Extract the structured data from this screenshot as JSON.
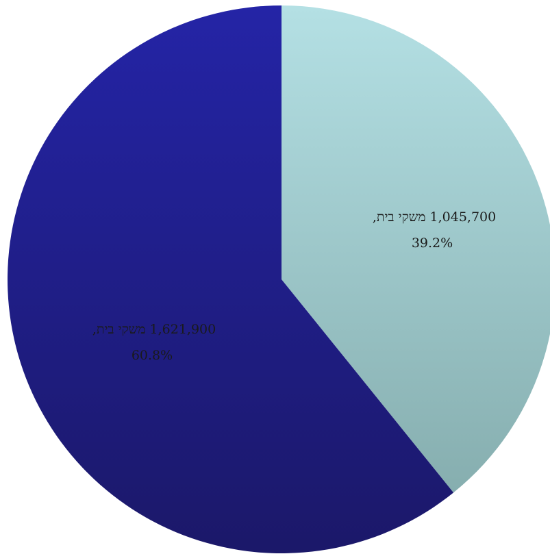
{
  "chart_data": {
    "type": "pie",
    "title": "",
    "start_angle_deg": 0,
    "direction": "clockwise",
    "slices": [
      {
        "value": 1045700,
        "percent": 39.2,
        "label_line1": "1,045,700 משקי בית,",
        "label_line2": "39.2%",
        "color_top": "#b4e0e4",
        "color_bottom": "#86aeaf"
      },
      {
        "value": 1621900,
        "percent": 60.8,
        "label_line1": "1,621,900 משקי בית,",
        "label_line2": "60.8%",
        "color_top": "#2424a6",
        "color_bottom": "#1b1869"
      }
    ]
  }
}
